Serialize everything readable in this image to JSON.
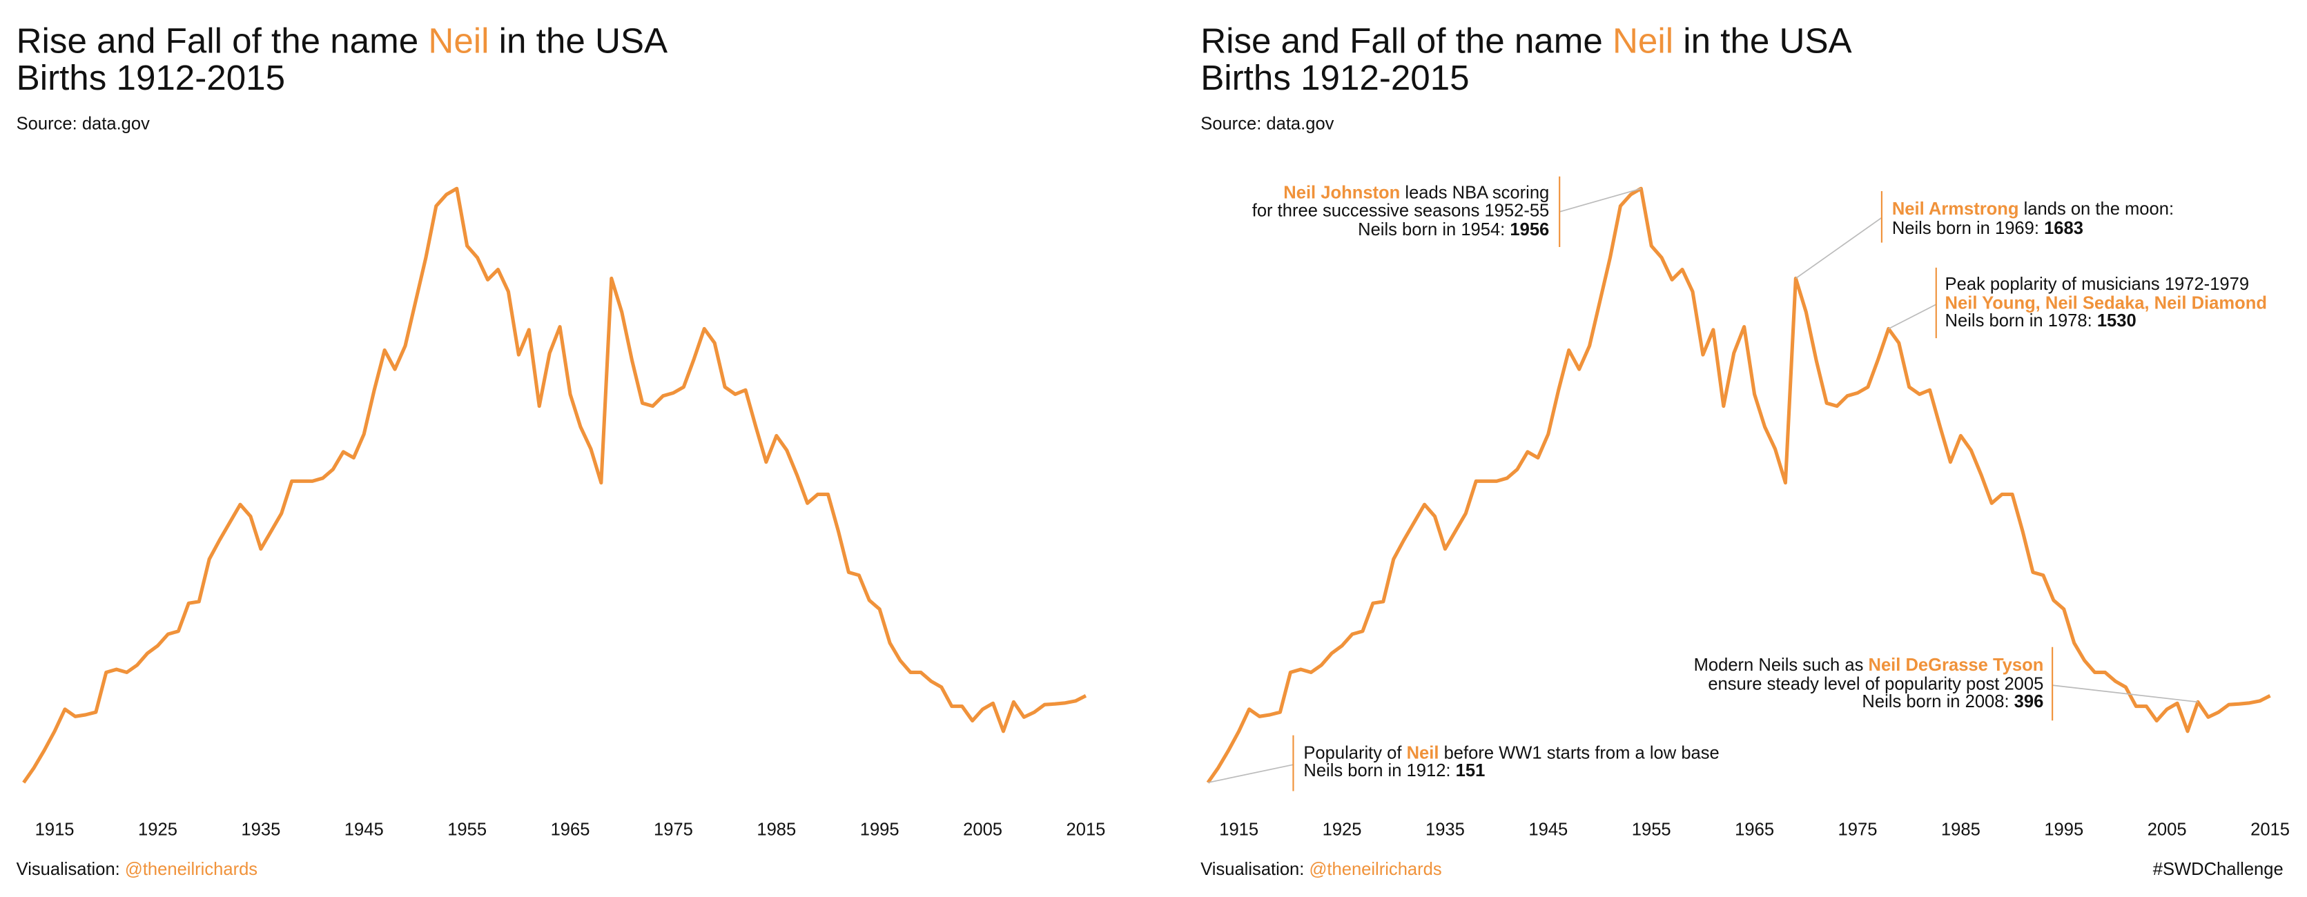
{
  "chart_data": [
    {
      "type": "line",
      "title": [
        {
          "text": "Rise and Fall of the name "
        },
        {
          "text": "Neil",
          "highlight": true
        },
        {
          "text": " in the USA"
        }
      ],
      "subtitle": "Births 1912-2015",
      "source": "Source: data.gov",
      "footer": [
        {
          "text": "Visualisation: "
        },
        {
          "text": "@theneilrichards",
          "highlight": true
        }
      ],
      "color": "#f0923a",
      "highlight_color": "#f0923a",
      "x": [
        1912,
        1913,
        1914,
        1915,
        1916,
        1917,
        1918,
        1919,
        1920,
        1921,
        1922,
        1923,
        1924,
        1925,
        1926,
        1927,
        1928,
        1929,
        1930,
        1931,
        1932,
        1933,
        1934,
        1935,
        1936,
        1937,
        1938,
        1939,
        1940,
        1941,
        1942,
        1943,
        1944,
        1945,
        1946,
        1947,
        1948,
        1949,
        1950,
        1951,
        1952,
        1953,
        1954,
        1955,
        1956,
        1957,
        1958,
        1959,
        1960,
        1961,
        1962,
        1963,
        1964,
        1965,
        1966,
        1967,
        1968,
        1969,
        1970,
        1971,
        1972,
        1973,
        1974,
        1975,
        1976,
        1977,
        1978,
        1979,
        1980,
        1981,
        1982,
        1983,
        1984,
        1985,
        1986,
        1987,
        1988,
        1989,
        1990,
        1991,
        1992,
        1993,
        1994,
        1995,
        1996,
        1997,
        1998,
        1999,
        2000,
        2001,
        2002,
        2003,
        2004,
        2005,
        2006,
        2007,
        2008,
        2009,
        2010,
        2011,
        2012,
        2013,
        2014,
        2015
      ],
      "values": [
        151,
        196,
        249,
        307,
        374,
        352,
        357,
        365,
        486,
        495,
        486,
        508,
        544,
        567,
        602,
        611,
        696,
        701,
        830,
        888,
        942,
        996,
        960,
        861,
        915,
        969,
        1067,
        1067,
        1067,
        1076,
        1103,
        1156,
        1138,
        1210,
        1344,
        1465,
        1407,
        1478,
        1612,
        1746,
        1903,
        1938,
        1956,
        1782,
        1746,
        1679,
        1710,
        1643,
        1451,
        1527,
        1295,
        1456,
        1536,
        1331,
        1232,
        1165,
        1062,
        1683,
        1581,
        1433,
        1304,
        1295,
        1326,
        1335,
        1353,
        1438,
        1530,
        1487,
        1353,
        1331,
        1344,
        1232,
        1125,
        1205,
        1161,
        1085,
        1000,
        1027,
        1027,
        915,
        790,
        781,
        705,
        678,
        575,
        522,
        486,
        486,
        459,
        441,
        383,
        383,
        339,
        374,
        392,
        307,
        396,
        350,
        365,
        388,
        390,
        393,
        399,
        415
      ],
      "xlim": [
        1912,
        2015
      ],
      "ylim": [
        0,
        2100
      ],
      "xticks": [
        1915,
        1925,
        1935,
        1945,
        1955,
        1965,
        1975,
        1985,
        1995,
        2005,
        2015
      ]
    },
    {
      "type": "line",
      "title": [
        {
          "text": "Rise and Fall of the name "
        },
        {
          "text": "Neil",
          "highlight": true
        },
        {
          "text": " in the USA"
        }
      ],
      "subtitle": "Births 1912-2015",
      "source": "Source: data.gov",
      "footer": [
        {
          "text": "Visualisation: "
        },
        {
          "text": "@theneilrichards",
          "highlight": true
        }
      ],
      "tag": "#SWDChallenge",
      "color": "#f0923a",
      "highlight_color": "#f0923a",
      "x": [
        1912,
        1913,
        1914,
        1915,
        1916,
        1917,
        1918,
        1919,
        1920,
        1921,
        1922,
        1923,
        1924,
        1925,
        1926,
        1927,
        1928,
        1929,
        1930,
        1931,
        1932,
        1933,
        1934,
        1935,
        1936,
        1937,
        1938,
        1939,
        1940,
        1941,
        1942,
        1943,
        1944,
        1945,
        1946,
        1947,
        1948,
        1949,
        1950,
        1951,
        1952,
        1953,
        1954,
        1955,
        1956,
        1957,
        1958,
        1959,
        1960,
        1961,
        1962,
        1963,
        1964,
        1965,
        1966,
        1967,
        1968,
        1969,
        1970,
        1971,
        1972,
        1973,
        1974,
        1975,
        1976,
        1977,
        1978,
        1979,
        1980,
        1981,
        1982,
        1983,
        1984,
        1985,
        1986,
        1987,
        1988,
        1989,
        1990,
        1991,
        1992,
        1993,
        1994,
        1995,
        1996,
        1997,
        1998,
        1999,
        2000,
        2001,
        2002,
        2003,
        2004,
        2005,
        2006,
        2007,
        2008,
        2009,
        2010,
        2011,
        2012,
        2013,
        2014,
        2015
      ],
      "values": [
        151,
        196,
        249,
        307,
        374,
        352,
        357,
        365,
        486,
        495,
        486,
        508,
        544,
        567,
        602,
        611,
        696,
        701,
        830,
        888,
        942,
        996,
        960,
        861,
        915,
        969,
        1067,
        1067,
        1067,
        1076,
        1103,
        1156,
        1138,
        1210,
        1344,
        1465,
        1407,
        1478,
        1612,
        1746,
        1903,
        1938,
        1956,
        1782,
        1746,
        1679,
        1710,
        1643,
        1451,
        1527,
        1295,
        1456,
        1536,
        1331,
        1232,
        1165,
        1062,
        1683,
        1581,
        1433,
        1304,
        1295,
        1326,
        1335,
        1353,
        1438,
        1530,
        1487,
        1353,
        1331,
        1344,
        1232,
        1125,
        1205,
        1161,
        1085,
        1000,
        1027,
        1027,
        915,
        790,
        781,
        705,
        678,
        575,
        522,
        486,
        486,
        459,
        441,
        383,
        383,
        339,
        374,
        392,
        307,
        396,
        350,
        365,
        388,
        390,
        393,
        399,
        415
      ],
      "xlim": [
        1912,
        2015
      ],
      "ylim": [
        0,
        2100
      ],
      "xticks": [
        1915,
        1925,
        1935,
        1945,
        1955,
        1965,
        1975,
        1985,
        1995,
        2005,
        2015
      ],
      "annotations": [
        {
          "year": 1954,
          "lines": [
            [
              {
                "text": "Neil Johnston",
                "style": "name"
              },
              {
                "text": " leads NBA scoring"
              }
            ],
            [
              {
                "text": "for three successive seasons 1952-55"
              }
            ],
            [
              {
                "text": "Neils born in 1954: "
              },
              {
                "text": "1956",
                "style": "bold"
              }
            ]
          ]
        },
        {
          "year": 1969,
          "lines": [
            [
              {
                "text": "Neil Armstrong",
                "style": "name"
              },
              {
                "text": " lands on the moon:"
              }
            ],
            [
              {
                "text": "Neils born in 1969: "
              },
              {
                "text": "1683",
                "style": "bold"
              }
            ]
          ]
        },
        {
          "year": 1978,
          "lines": [
            [
              {
                "text": "Peak poplarity of musicians 1972-1979"
              }
            ],
            [
              {
                "text": "Neil Young, Neil Sedaka, Neil Diamond",
                "style": "name"
              }
            ],
            [
              {
                "text": "Neils born in 1978: "
              },
              {
                "text": "1530",
                "style": "bold"
              }
            ]
          ]
        },
        {
          "year": 2008,
          "lines": [
            [
              {
                "text": "Modern Neils such as "
              },
              {
                "text": "Neil DeGrasse Tyson",
                "style": "name"
              }
            ],
            [
              {
                "text": "ensure steady level of popularity post 2005"
              }
            ],
            [
              {
                "text": "Neils born in 2008: "
              },
              {
                "text": "396",
                "style": "bold"
              }
            ]
          ]
        },
        {
          "year": 1912,
          "lines": [
            [
              {
                "text": "Popularity of "
              },
              {
                "text": "Neil",
                "style": "name"
              },
              {
                "text": " before WW1 starts from a low base"
              }
            ],
            [
              {
                "text": "Neils born in 1912: "
              },
              {
                "text": "151",
                "style": "bold"
              }
            ]
          ]
        }
      ]
    }
  ]
}
